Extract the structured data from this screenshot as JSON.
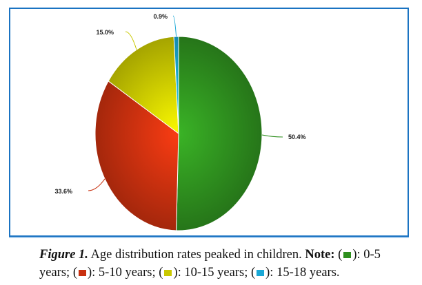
{
  "chart_data": {
    "type": "pie",
    "title": "",
    "slices": [
      {
        "label": "0-5 years",
        "value": 50.4,
        "display": "50.4%",
        "color": "#2e8f1e"
      },
      {
        "label": "5-10 years",
        "value": 33.6,
        "display": "33.6%",
        "color": "#c8300f"
      },
      {
        "label": "10-15 years",
        "value": 15.0,
        "display": "15.0%",
        "color": "#c9c800"
      },
      {
        "label": "15-18 years",
        "value": 0.9,
        "display": "0.9%",
        "color": "#1aa8d6"
      }
    ]
  },
  "caption": {
    "figure_label": "Figure 1.",
    "text": " Age distribution rates peaked in children. ",
    "note_label": "Note:",
    "legend": [
      {
        "range": "0-5 years;",
        "color": "#2e8f1e"
      },
      {
        "range": "5-10 years;",
        "color": "#c8300f"
      },
      {
        "range": "10-15 years;",
        "color": "#c9c800"
      },
      {
        "range": "15-18 years.",
        "color": "#1aa8d6"
      }
    ]
  }
}
